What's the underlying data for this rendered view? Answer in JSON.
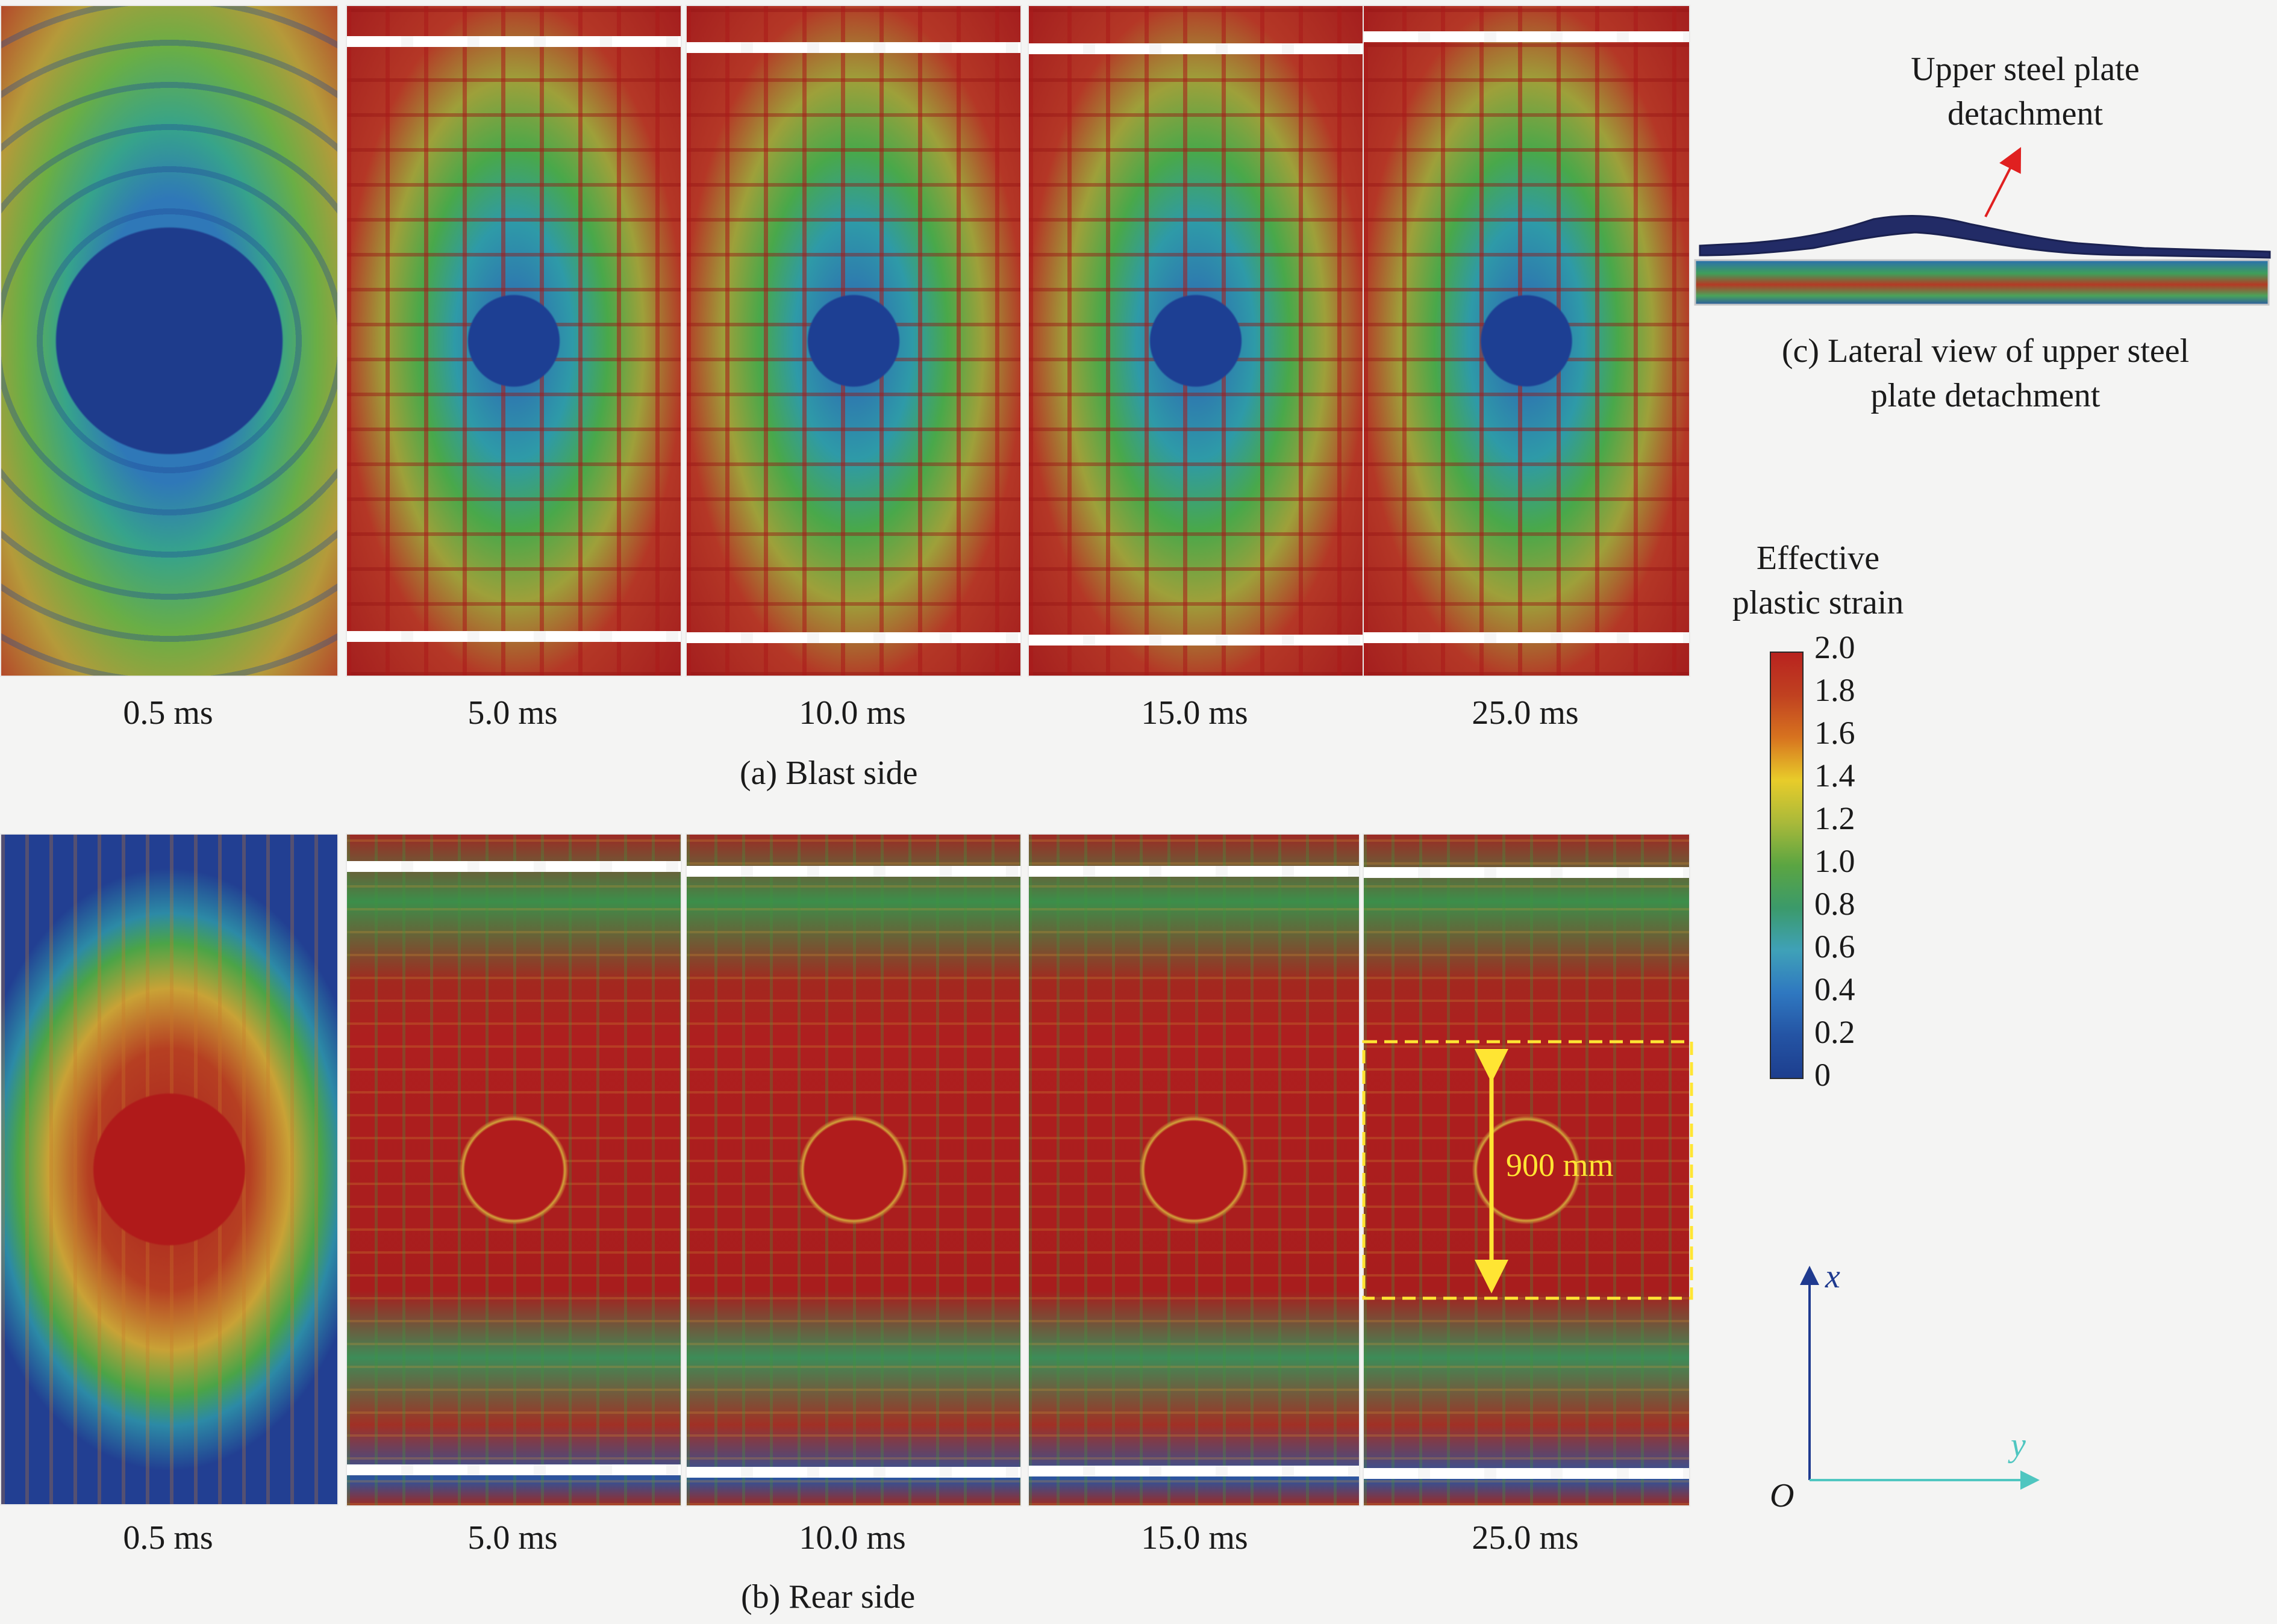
{
  "blast_row": {
    "times": [
      "0.5 ms",
      "5.0 ms",
      "10.0 ms",
      "15.0 ms",
      "25.0 ms"
    ],
    "caption": "(a) Blast side"
  },
  "rear_row": {
    "times": [
      "0.5 ms",
      "5.0 ms",
      "10.0 ms",
      "15.0 ms",
      "25.0 ms"
    ],
    "caption": "(b) Rear side",
    "dimension_label": "900 mm"
  },
  "lateral_view": {
    "annotation_line1": "Upper steel plate",
    "annotation_line2": "detachment",
    "caption_line1": "(c) Lateral view of upper steel",
    "caption_line2": "plate detachment"
  },
  "legend": {
    "title_line1": "Effective",
    "title_line2": "plastic strain",
    "ticks": [
      "2.0",
      "1.8",
      "1.6",
      "1.4",
      "1.2",
      "1.0",
      "0.8",
      "0.6",
      "0.4",
      "0.2",
      "0"
    ]
  },
  "axes": {
    "x_label": "x",
    "y_label": "y",
    "origin_label": "O"
  },
  "colors": {
    "axis_x": "#1f3a8f",
    "axis_y": "#4fc6c0",
    "dimension": "#ffe533",
    "arrow": "#e02020"
  }
}
